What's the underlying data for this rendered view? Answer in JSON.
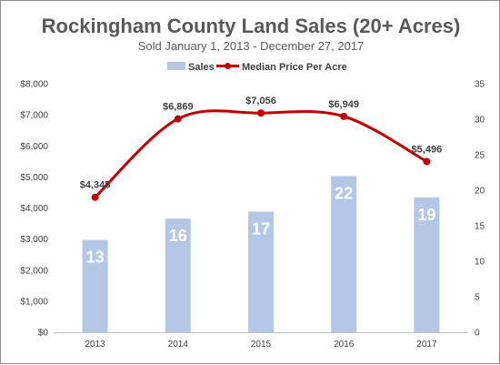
{
  "chart_data": {
    "type": "bar",
    "title": "Rockingham County Land Sales (20+ Acres)",
    "subtitle": "Sold January 1, 2013 - December 27, 2017",
    "categories": [
      "2013",
      "2014",
      "2015",
      "2016",
      "2017"
    ],
    "series": [
      {
        "name": "Sales",
        "type": "bar",
        "axis": "right",
        "values": [
          13,
          16,
          17,
          22,
          19
        ],
        "labels": [
          "13",
          "16",
          "17",
          "22",
          "19"
        ],
        "color": "#b4c7e7"
      },
      {
        "name": "Median Price Per Acre",
        "type": "line",
        "axis": "left",
        "values": [
          4345,
          6869,
          7056,
          6949,
          5496
        ],
        "labels": [
          "$4,345",
          "$6,869",
          "$7,056",
          "$6,949",
          "$5,496"
        ],
        "color": "#c00000"
      }
    ],
    "y_left": {
      "min": 0,
      "max": 8000,
      "ticks": [
        0,
        1000,
        2000,
        3000,
        4000,
        5000,
        6000,
        7000,
        8000
      ],
      "tick_labels": [
        "$0",
        "$1,000",
        "$2,000",
        "$3,000",
        "$4,000",
        "$5,000",
        "$6,000",
        "$7,000",
        "$8,000"
      ]
    },
    "y_right": {
      "min": 0,
      "max": 35,
      "ticks": [
        0,
        5,
        10,
        15,
        20,
        25,
        30,
        35
      ],
      "tick_labels": [
        "0",
        "5",
        "10",
        "15",
        "20",
        "25",
        "30",
        "35"
      ]
    },
    "legend": {
      "position": "top",
      "items": [
        "Sales",
        "Median Price Per Acre"
      ]
    },
    "grid": false
  }
}
